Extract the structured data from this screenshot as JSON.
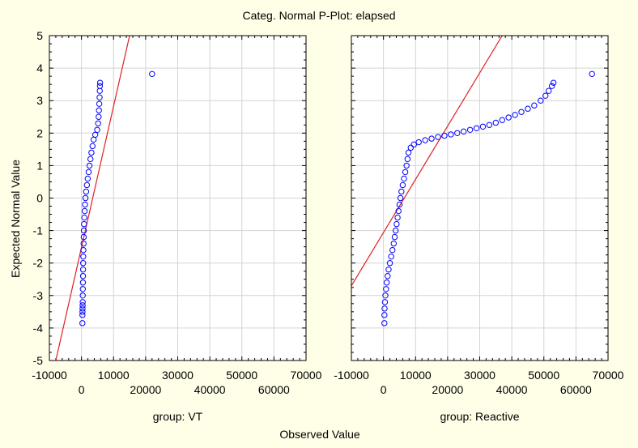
{
  "chart_data": {
    "title": "Categ. Normal P-Plot:  elapsed",
    "ylabel": "Expected Normal Value",
    "xlabel": "Observed Value",
    "type": "scatter",
    "colors": {
      "background": "#FFFFE8",
      "plot_bg": "#FFFFFF",
      "grid": "#D4D4D4",
      "points": "#0000FF",
      "line": "#E02020"
    },
    "grid": true,
    "ylim": [
      -5,
      5
    ],
    "xlim": [
      -10000,
      70000
    ],
    "y_ticks": [
      "5",
      "4",
      "3",
      "2",
      "1",
      "0",
      "-1",
      "-2",
      "-3",
      "-4",
      "-5"
    ],
    "x_ticks_upper": [
      "-10000",
      "10000",
      "30000",
      "50000",
      "70000"
    ],
    "x_ticks_lower": [
      "0",
      "20000",
      "40000",
      "60000"
    ],
    "panels": [
      {
        "label": "group: VT",
        "reference_line": [
          [
            -8000,
            -5.0
          ],
          [
            15000,
            5.0
          ]
        ],
        "points": [
          [
            290,
            -3.85
          ],
          [
            300,
            -3.6
          ],
          [
            320,
            -3.5
          ],
          [
            340,
            -3.4
          ],
          [
            360,
            -3.3
          ],
          [
            380,
            -3.2
          ],
          [
            400,
            -3.0
          ],
          [
            420,
            -2.8
          ],
          [
            450,
            -2.6
          ],
          [
            480,
            -2.4
          ],
          [
            500,
            -2.2
          ],
          [
            520,
            -2.0
          ],
          [
            550,
            -1.8
          ],
          [
            600,
            -1.6
          ],
          [
            650,
            -1.4
          ],
          [
            700,
            -1.2
          ],
          [
            750,
            -1.0
          ],
          [
            800,
            -0.8
          ],
          [
            900,
            -0.6
          ],
          [
            1000,
            -0.4
          ],
          [
            1100,
            -0.2
          ],
          [
            1250,
            0.0
          ],
          [
            1450,
            0.2
          ],
          [
            1700,
            0.4
          ],
          [
            1950,
            0.6
          ],
          [
            2250,
            0.8
          ],
          [
            2500,
            1.0
          ],
          [
            2800,
            1.2
          ],
          [
            3100,
            1.4
          ],
          [
            3450,
            1.6
          ],
          [
            3800,
            1.8
          ],
          [
            4300,
            1.95
          ],
          [
            4900,
            2.1
          ],
          [
            5200,
            2.3
          ],
          [
            5350,
            2.5
          ],
          [
            5450,
            2.7
          ],
          [
            5550,
            2.9
          ],
          [
            5650,
            3.1
          ],
          [
            5700,
            3.3
          ],
          [
            5750,
            3.45
          ],
          [
            5800,
            3.55
          ],
          [
            22000,
            3.82
          ]
        ]
      },
      {
        "label": "group: Reactive",
        "reference_line": [
          [
            -10000,
            -2.7
          ],
          [
            37000,
            5.0
          ]
        ],
        "points": [
          [
            290,
            -3.85
          ],
          [
            300,
            -3.6
          ],
          [
            350,
            -3.4
          ],
          [
            450,
            -3.2
          ],
          [
            600,
            -3.0
          ],
          [
            800,
            -2.8
          ],
          [
            1000,
            -2.6
          ],
          [
            1300,
            -2.4
          ],
          [
            1600,
            -2.2
          ],
          [
            2000,
            -2.0
          ],
          [
            2400,
            -1.8
          ],
          [
            2800,
            -1.6
          ],
          [
            3200,
            -1.4
          ],
          [
            3500,
            -1.2
          ],
          [
            3800,
            -1.0
          ],
          [
            4100,
            -0.8
          ],
          [
            4400,
            -0.6
          ],
          [
            4700,
            -0.4
          ],
          [
            5000,
            -0.2
          ],
          [
            5300,
            0.0
          ],
          [
            5600,
            0.2
          ],
          [
            6000,
            0.4
          ],
          [
            6400,
            0.6
          ],
          [
            6800,
            0.8
          ],
          [
            7200,
            1.0
          ],
          [
            7500,
            1.2
          ],
          [
            7800,
            1.4
          ],
          [
            8500,
            1.55
          ],
          [
            9500,
            1.65
          ],
          [
            11000,
            1.72
          ],
          [
            13000,
            1.78
          ],
          [
            15000,
            1.83
          ],
          [
            17000,
            1.88
          ],
          [
            19000,
            1.92
          ],
          [
            21000,
            1.96
          ],
          [
            23000,
            2.0
          ],
          [
            25000,
            2.05
          ],
          [
            27000,
            2.1
          ],
          [
            29000,
            2.15
          ],
          [
            31000,
            2.2
          ],
          [
            33000,
            2.25
          ],
          [
            35000,
            2.32
          ],
          [
            37000,
            2.4
          ],
          [
            39000,
            2.48
          ],
          [
            41000,
            2.56
          ],
          [
            43000,
            2.65
          ],
          [
            45000,
            2.75
          ],
          [
            47000,
            2.85
          ],
          [
            49000,
            3.0
          ],
          [
            50500,
            3.15
          ],
          [
            51500,
            3.3
          ],
          [
            52500,
            3.45
          ],
          [
            53000,
            3.55
          ],
          [
            65000,
            3.82
          ]
        ]
      }
    ]
  }
}
